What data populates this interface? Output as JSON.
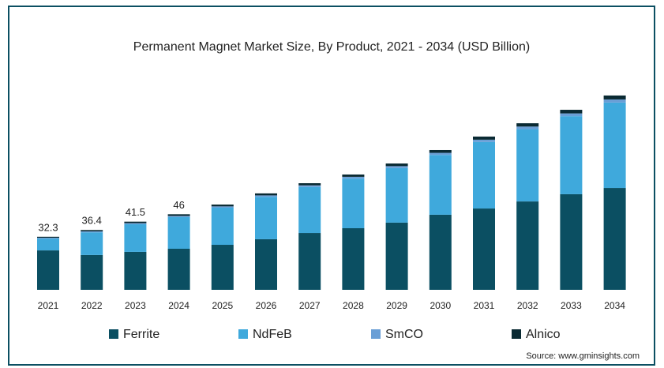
{
  "chart_data": {
    "type": "bar",
    "stacked": true,
    "title": "Permanent Magnet Market Size, By Product, 2021 - 2034 (USD Billion)",
    "categories": [
      "2021",
      "2022",
      "2023",
      "2024",
      "2025",
      "2026",
      "2027",
      "2028",
      "2029",
      "2030",
      "2031",
      "2032",
      "2033",
      "2034"
    ],
    "series": [
      {
        "name": "Ferrite",
        "color": "#0b4f62",
        "values": [
          24.0,
          21.2,
          23.1,
          25.0,
          27.4,
          30.8,
          34.6,
          37.5,
          40.9,
          45.7,
          49.5,
          53.8,
          58.2,
          62.0
        ]
      },
      {
        "name": "NdFeB",
        "color": "#3fa9dc",
        "values": [
          7.2,
          13.8,
          16.9,
          19.3,
          22.6,
          25.8,
          28.0,
          30.2,
          33.2,
          36.4,
          40.5,
          44.0,
          47.5,
          52.0
        ]
      },
      {
        "name": "SmCO",
        "color": "#6a9fd6",
        "values": [
          0.5,
          0.6,
          0.6,
          0.7,
          0.8,
          0.9,
          1.0,
          1.1,
          1.2,
          1.3,
          1.4,
          1.6,
          1.7,
          1.9
        ]
      },
      {
        "name": "Alnico",
        "color": "#0a2a33",
        "values": [
          0.6,
          0.8,
          0.9,
          1.0,
          1.1,
          1.2,
          1.3,
          1.4,
          1.6,
          1.7,
          1.9,
          2.0,
          2.2,
          2.4
        ]
      }
    ],
    "totals": [
      32.3,
      36.4,
      41.5,
      46
    ],
    "source": "Source: www.gminsights.com"
  }
}
